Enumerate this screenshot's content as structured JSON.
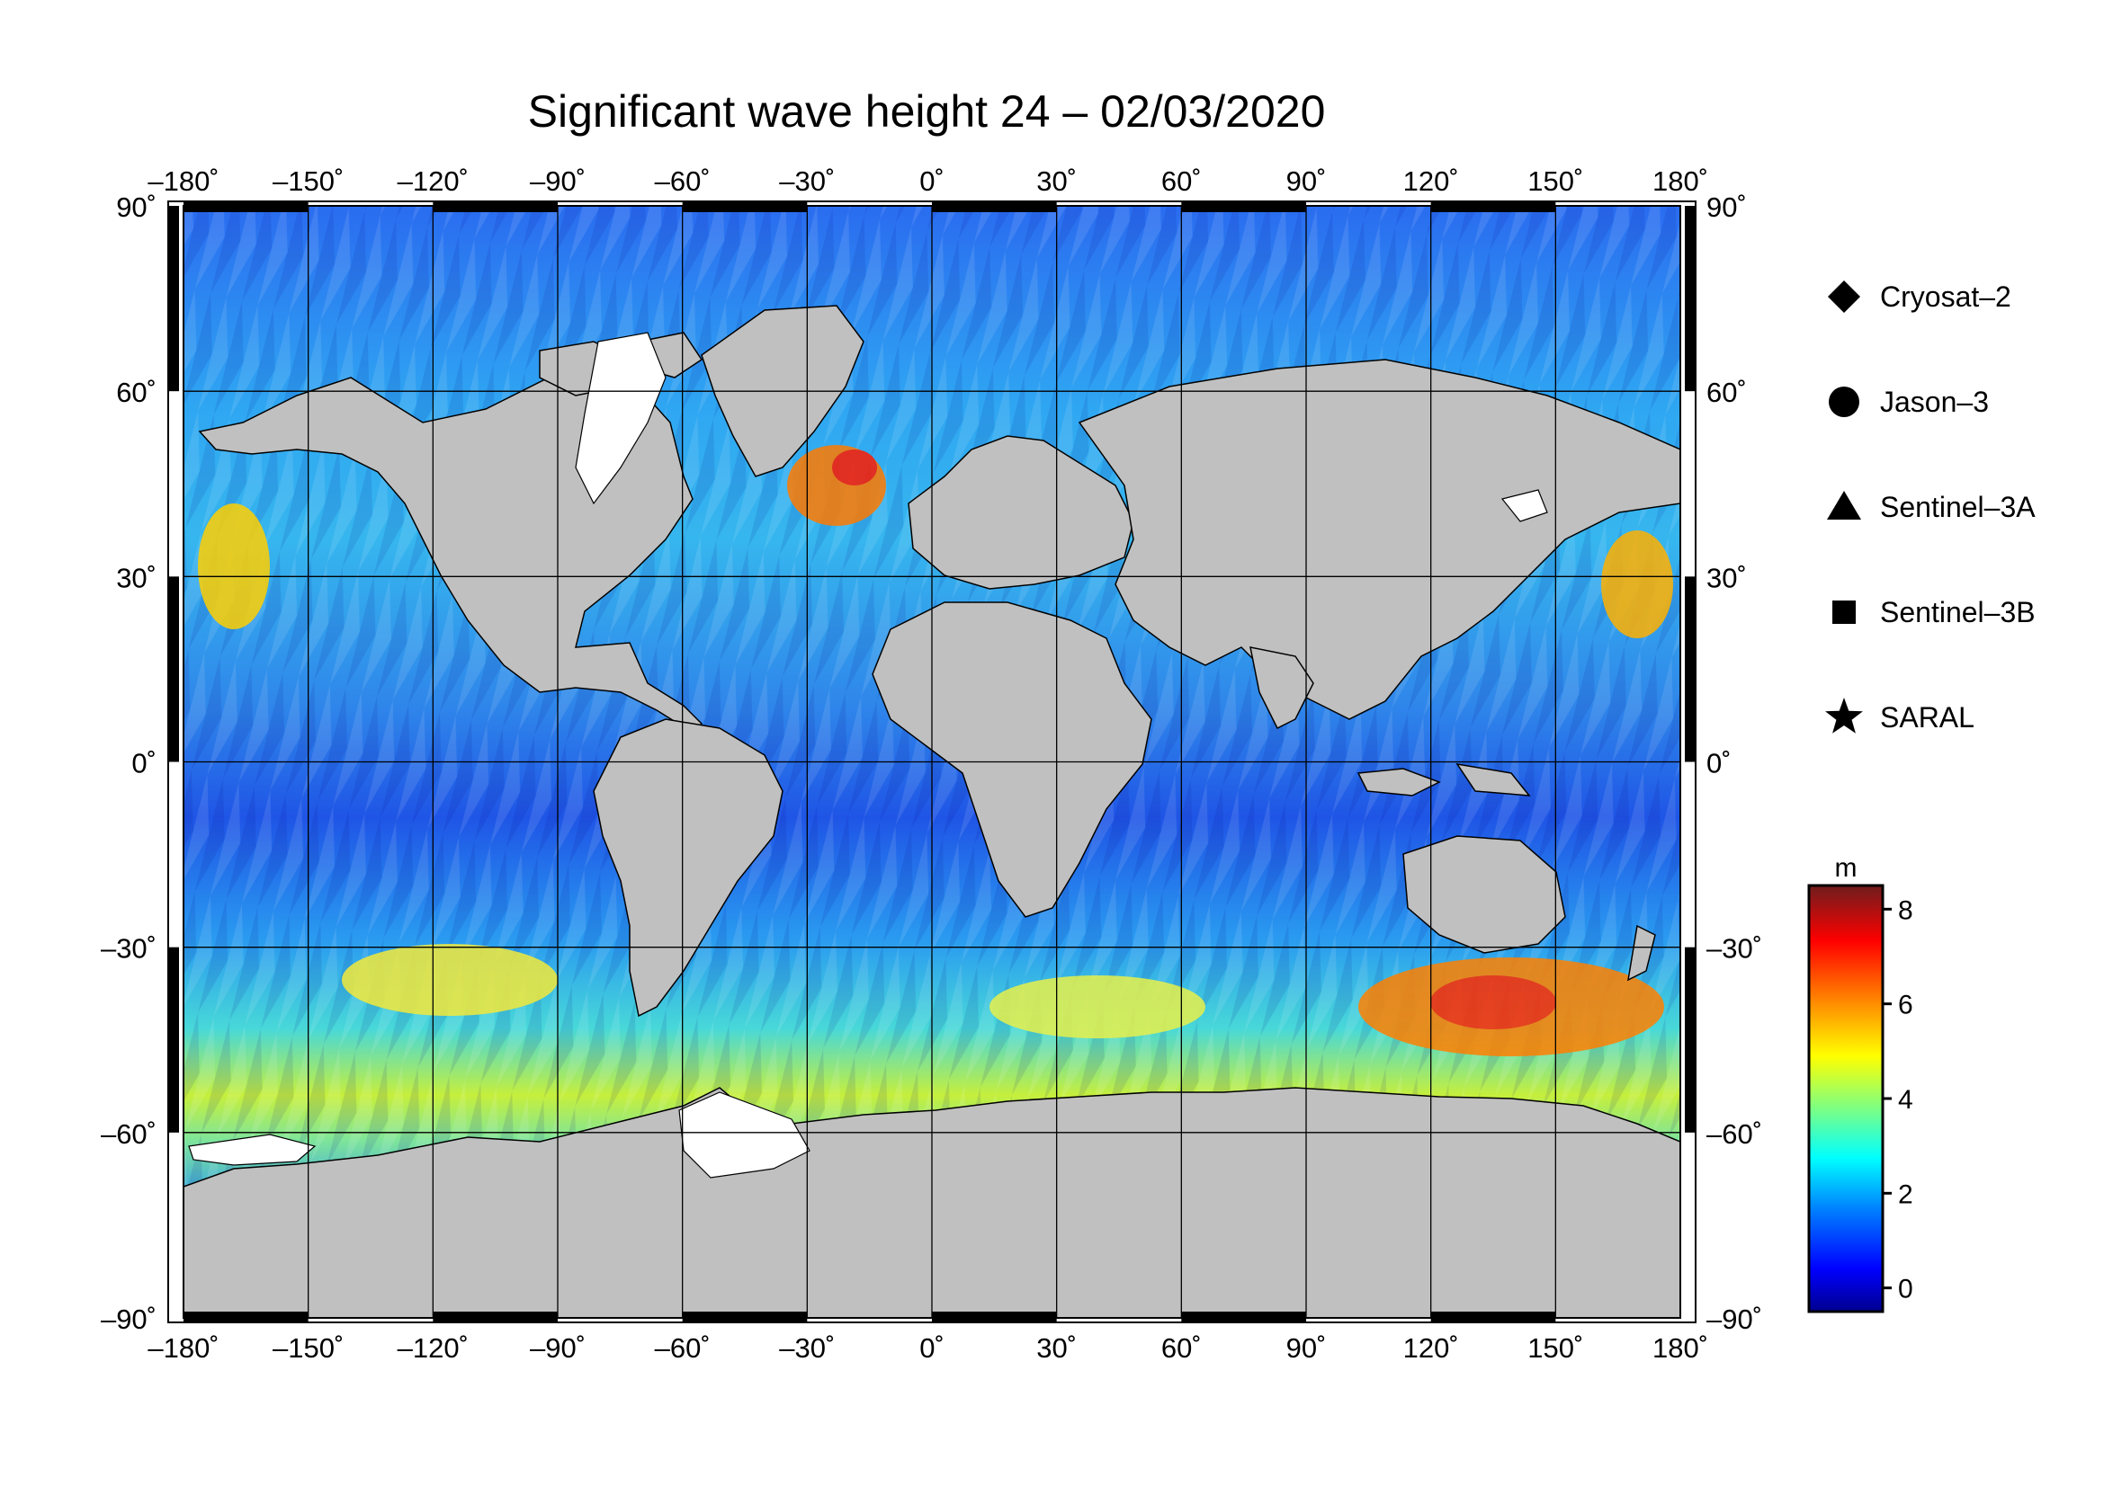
{
  "title": "Significant wave height 24 – 02/03/2020",
  "map": {
    "lon_range": [
      -180,
      180
    ],
    "lat_range": [
      -90,
      90
    ],
    "grid_step_lon": 30,
    "grid_step_lat": 30,
    "land_color": "#c0c0c0",
    "ice_color": "#ffffff",
    "frame_color": "#000000",
    "lon_labels": [
      "–180˚",
      "–150˚",
      "–120˚",
      "–90˚",
      "–60˚",
      "–30˚",
      "0˚",
      "30˚",
      "60˚",
      "90˚",
      "120˚",
      "150˚",
      "180˚"
    ],
    "lat_labels_left": [
      "90˚",
      "60˚",
      "30˚",
      "0˚",
      "–30˚",
      "–60˚",
      "–90˚"
    ],
    "lat_labels_right": [
      "90˚",
      "60˚",
      "30˚",
      "0˚",
      "–30˚",
      "–60˚",
      "–90˚"
    ]
  },
  "legend": {
    "items": [
      {
        "label": "Cryosat–2",
        "symbol": "diamond"
      },
      {
        "label": "Jason–3",
        "symbol": "circle"
      },
      {
        "label": "Sentinel–3A",
        "symbol": "triangle"
      },
      {
        "label": "Sentinel–3B",
        "symbol": "square"
      },
      {
        "label": "SARAL",
        "symbol": "star"
      }
    ]
  },
  "colorbar": {
    "unit": "m",
    "min": -0.5,
    "max": 8.5,
    "ticks": [
      {
        "value": 0,
        "label": "0"
      },
      {
        "value": 2,
        "label": "2"
      },
      {
        "value": 4,
        "label": "4"
      },
      {
        "value": 6,
        "label": "6"
      },
      {
        "value": 8,
        "label": "8"
      }
    ],
    "colors": [
      "#00008f",
      "#0000ff",
      "#0080ff",
      "#00ffff",
      "#80ff80",
      "#ffff00",
      "#ff8000",
      "#ff0000",
      "#800000"
    ]
  }
}
